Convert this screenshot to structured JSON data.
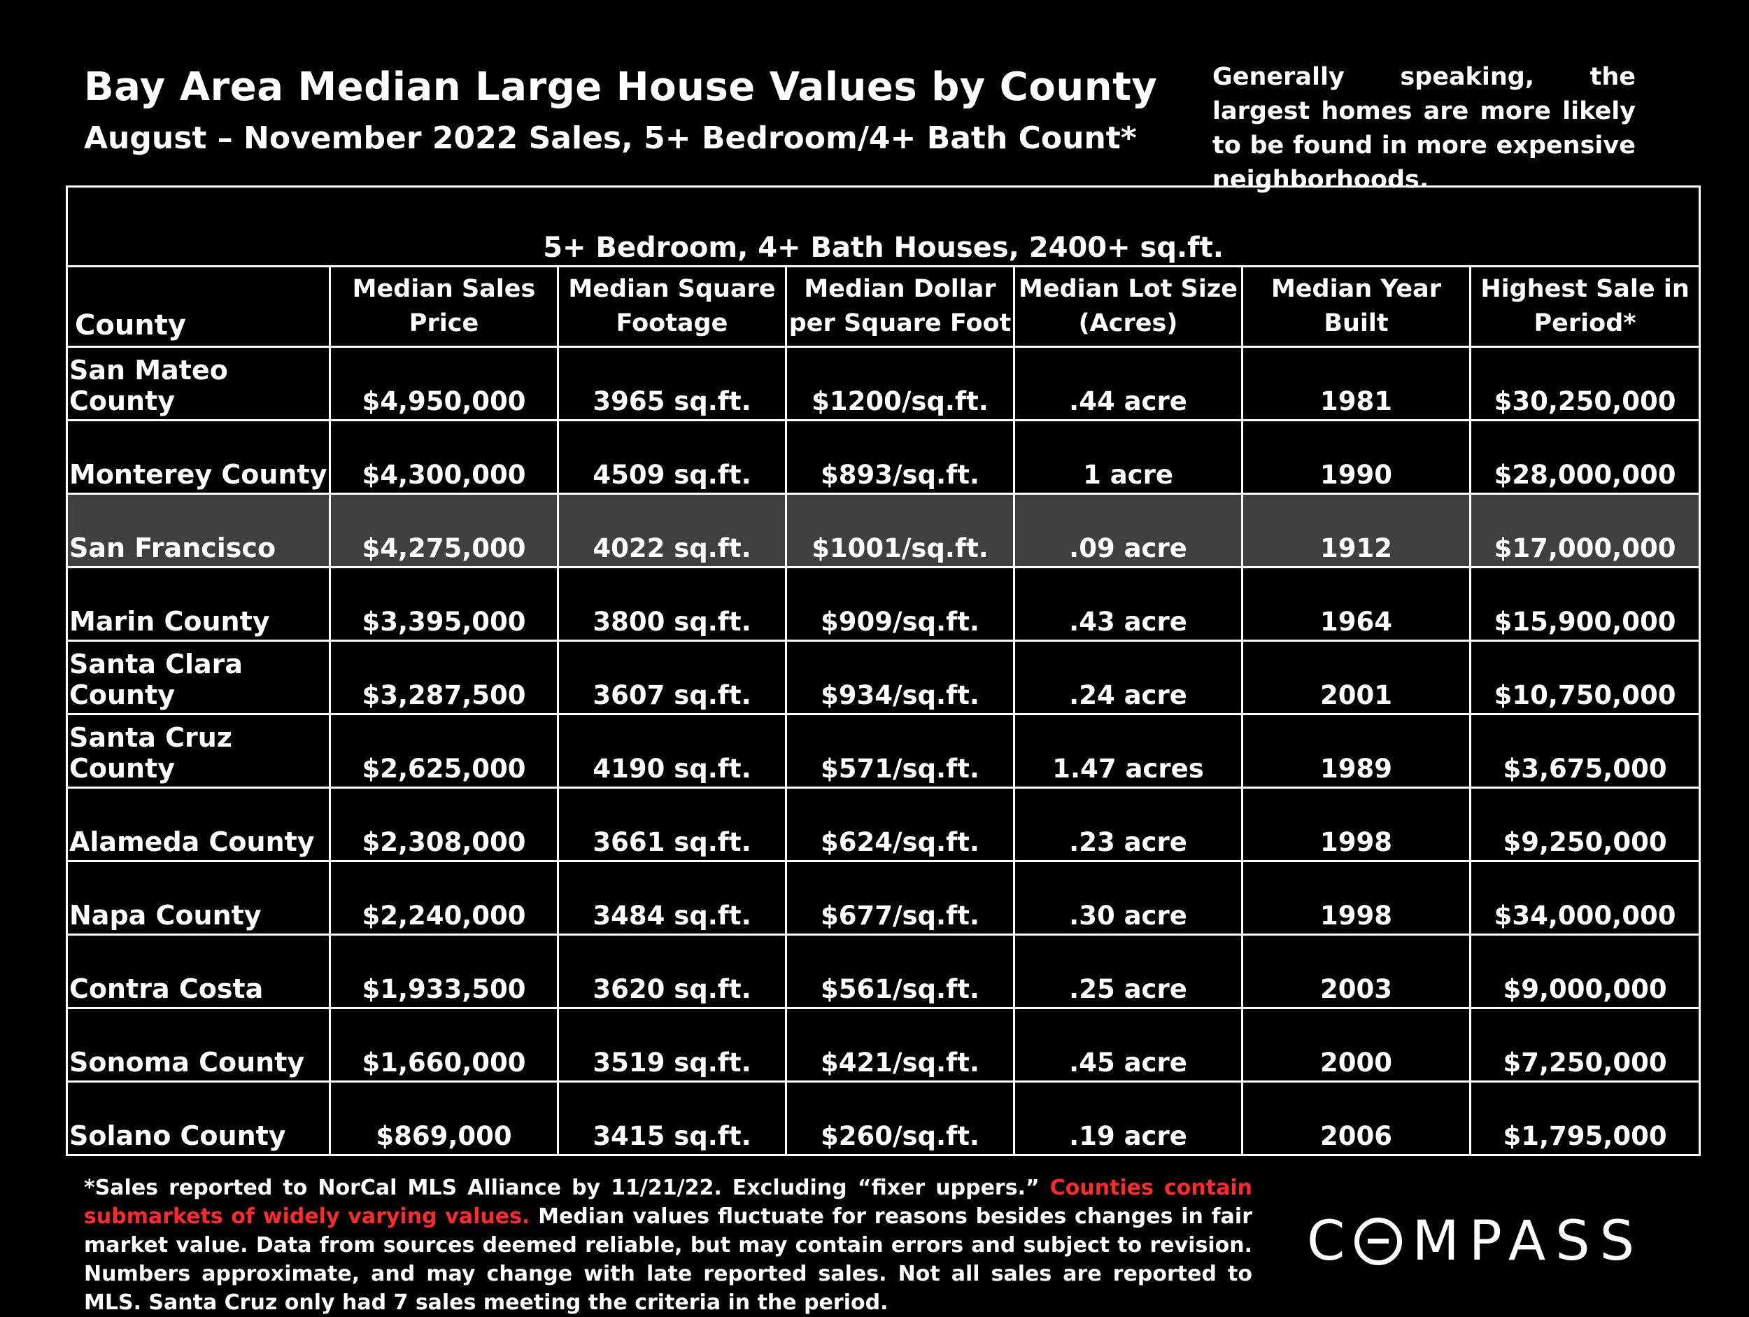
{
  "header": {
    "title": "Bay Area Median Large House Values by County",
    "subtitle": "August – November 2022 Sales, 5+ Bedroom/4+ Bath Count*",
    "note": "Generally speaking, the largest homes are more likely to be found in more expensive neighborhoods."
  },
  "table": {
    "caption": "5+ Bedroom, 4+ Bath Houses, 2400+ sq.ft.",
    "columns": [
      "County",
      "Median Sales Price",
      "Median Square Footage",
      "Median Dollar per Square Foot",
      "Median Lot Size (Acres)",
      "Median Year Built",
      "Highest Sale in Period*"
    ],
    "highlight_color": "#404040",
    "rows": [
      {
        "county": "San Mateo County",
        "price": "$4,950,000",
        "sqft": "3965 sq.ft.",
        "ppsf": "$1200/sq.ft.",
        "lot": ".44 acre",
        "year": "1981",
        "high": "$30,250,000"
      },
      {
        "county": "Monterey County",
        "price": "$4,300,000",
        "sqft": "4509 sq.ft.",
        "ppsf": "$893/sq.ft.",
        "lot": "1 acre",
        "year": "1990",
        "high": "$28,000,000"
      },
      {
        "county": "San Francisco",
        "price": "$4,275,000",
        "sqft": "4022 sq.ft.",
        "ppsf": "$1001/sq.ft.",
        "lot": ".09 acre",
        "year": "1912",
        "high": "$17,000,000",
        "highlighted": true
      },
      {
        "county": "Marin County",
        "price": "$3,395,000",
        "sqft": "3800 sq.ft.",
        "ppsf": "$909/sq.ft.",
        "lot": ".43 acre",
        "year": "1964",
        "high": "$15,900,000"
      },
      {
        "county": "Santa Clara County",
        "price": "$3,287,500",
        "sqft": "3607 sq.ft.",
        "ppsf": "$934/sq.ft.",
        "lot": ".24 acre",
        "year": "2001",
        "high": "$10,750,000"
      },
      {
        "county": "Santa Cruz County",
        "price": "$2,625,000",
        "sqft": "4190 sq.ft.",
        "ppsf": "$571/sq.ft.",
        "lot": "1.47 acres",
        "year": "1989",
        "high": "$3,675,000"
      },
      {
        "county": "Alameda County",
        "price": "$2,308,000",
        "sqft": "3661 sq.ft.",
        "ppsf": "$624/sq.ft.",
        "lot": ".23 acre",
        "year": "1998",
        "high": "$9,250,000"
      },
      {
        "county": "Napa County",
        "price": "$2,240,000",
        "sqft": "3484 sq.ft.",
        "ppsf": "$677/sq.ft.",
        "lot": ".30 acre",
        "year": "1998",
        "high": "$34,000,000"
      },
      {
        "county": "Contra Costa",
        "price": "$1,933,500",
        "sqft": "3620 sq.ft.",
        "ppsf": "$561/sq.ft.",
        "lot": ".25 acre",
        "year": "2003",
        "high": "$9,000,000"
      },
      {
        "county": "Sonoma County",
        "price": "$1,660,000",
        "sqft": "3519 sq.ft.",
        "ppsf": "$421/sq.ft.",
        "lot": ".45 acre",
        "year": "2000",
        "high": "$7,250,000"
      },
      {
        "county": "Solano County",
        "price": "$869,000",
        "sqft": "3415 sq.ft.",
        "ppsf": "$260/sq.ft.",
        "lot": ".19 acre",
        "year": "2006",
        "high": "$1,795,000"
      }
    ]
  },
  "footnote": {
    "part1": "*Sales reported to NorCal MLS Alliance by 11/21/22. Excluding “fixer uppers.” ",
    "red": "Counties contain submarkets of widely varying values.",
    "part2": " Median values fluctuate for reasons besides changes in fair market value. Data from sources deemed reliable, but may contain errors and subject to revision.  Numbers approximate, and may change with late reported sales. Not all sales are reported to MLS. Santa Cruz only had 7 sales meeting the criteria in the period.",
    "red_color": "#ff2a2a"
  },
  "logo": {
    "text": "COMPASS",
    "before": "C",
    "after": "MPASS"
  }
}
